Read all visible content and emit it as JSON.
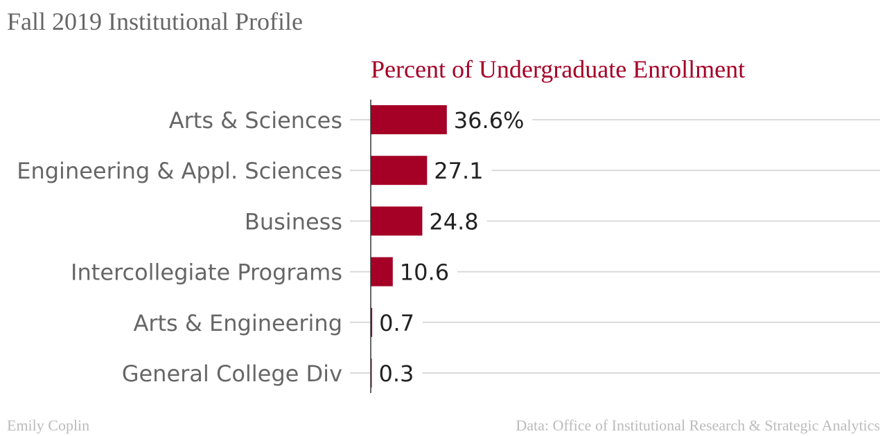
{
  "header": {
    "title": "Fall 2019 Institutional Profile"
  },
  "chart_data": {
    "type": "bar",
    "orientation": "horizontal",
    "title": "Percent of Undergraduate Enrollment",
    "categories": [
      "Arts & Sciences",
      "Engineering & Appl. Sciences",
      "Business",
      "Intercollegiate Programs",
      "Arts & Engineering",
      "General College Div"
    ],
    "values": [
      36.6,
      27.1,
      24.8,
      10.6,
      0.7,
      0.3
    ],
    "value_labels": [
      "36.6%",
      "27.1",
      "24.8",
      "10.6",
      "0.7",
      "0.3"
    ],
    "xlim": [
      0,
      100
    ],
    "grid": true,
    "bar_color": "#a50026",
    "title_color": "#a50026"
  },
  "footer": {
    "credit": "Emily Coplin",
    "source": "Data: Office of Institutional Research & Strategic Analytics"
  }
}
